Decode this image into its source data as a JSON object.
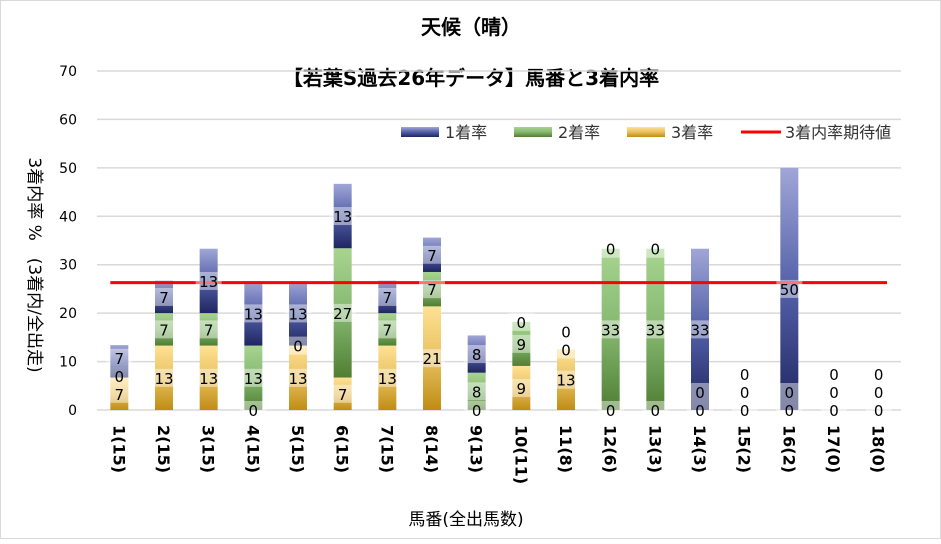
{
  "chart_data": {
    "type": "bar",
    "stacked": true,
    "title": "天候（晴）",
    "subtitle": "【若葉S過去26年データ】馬番と3着内率",
    "xlabel": "馬番(全出馬数)",
    "ylabel": "3着内率 %　(3着内/全出走)",
    "ylim": [
      0,
      70
    ],
    "yticks": [
      0,
      10,
      20,
      30,
      40,
      50,
      60,
      70
    ],
    "grid": true,
    "legend_position": "top-right",
    "categories": [
      "1(15)",
      "2(15)",
      "3(15)",
      "4(15)",
      "5(15)",
      "6(15)",
      "7(15)",
      "8(14)",
      "9(13)",
      "10(11)",
      "11(8)",
      "12(6)",
      "13(3)",
      "14(3)",
      "15(2)",
      "16(2)",
      "17(0)",
      "18(0)"
    ],
    "series": [
      {
        "name": "3着率",
        "color": "#c9961a",
        "values": [
          6.7,
          13.3,
          13.3,
          0,
          13.3,
          6.7,
          13.3,
          21.4,
          0,
          9.1,
          12.5,
          0,
          0,
          0,
          0,
          0,
          0,
          0
        ]
      },
      {
        "name": "2着率",
        "color": "#5a8a3a",
        "values": [
          0,
          6.7,
          6.7,
          13.3,
          0,
          26.7,
          6.7,
          7.1,
          7.7,
          9.1,
          0,
          33.3,
          33.3,
          0,
          0,
          0,
          0,
          0
        ]
      },
      {
        "name": "1着率",
        "color": "#2e3a80",
        "values": [
          6.7,
          6.7,
          13.3,
          13.3,
          13.3,
          13.3,
          6.7,
          7.1,
          7.7,
          0,
          0,
          0,
          0,
          33.3,
          0,
          50,
          0,
          0
        ]
      }
    ],
    "legend": [
      "1着率",
      "2着率",
      "3着率",
      "3着内率期待値"
    ],
    "reference_line": {
      "name": "3着内率期待値",
      "value": 26.3,
      "color": "#ff0000"
    }
  }
}
